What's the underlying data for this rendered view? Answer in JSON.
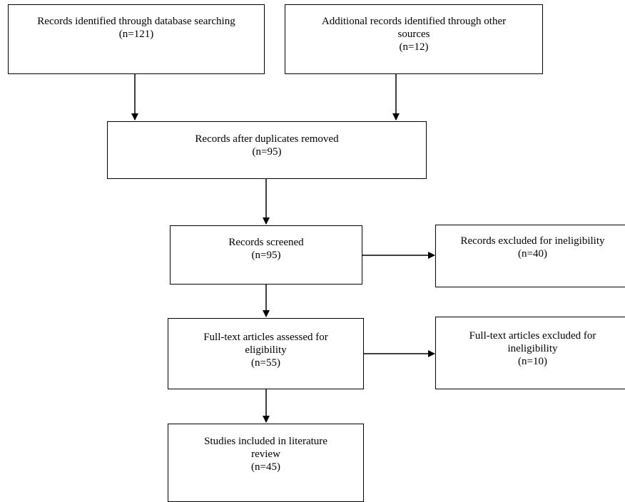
{
  "boxes": {
    "identified_db": {
      "lines": [
        "Records identified through database searching",
        "(n=121)"
      ]
    },
    "identified_other": {
      "lines": [
        "Additional records identified through other",
        "sources",
        "(n=12)"
      ]
    },
    "after_duplicates": {
      "lines": [
        "Records after duplicates removed",
        "(n=95)"
      ]
    },
    "screened": {
      "lines": [
        "Records screened",
        "(n=95)"
      ]
    },
    "excluded_screen": {
      "lines": [
        "Records excluded for ineligibility",
        "(n=40)"
      ]
    },
    "fulltext_assessed": {
      "lines": [
        "Full-text articles assessed for",
        "eligibility",
        "(n=55)"
      ]
    },
    "fulltext_excluded": {
      "lines": [
        "Full-text articles excluded for",
        "ineligibility",
        "(n=10)"
      ]
    },
    "included": {
      "lines": [
        "Studies included in literature",
        "review",
        "(n=45)"
      ]
    }
  }
}
